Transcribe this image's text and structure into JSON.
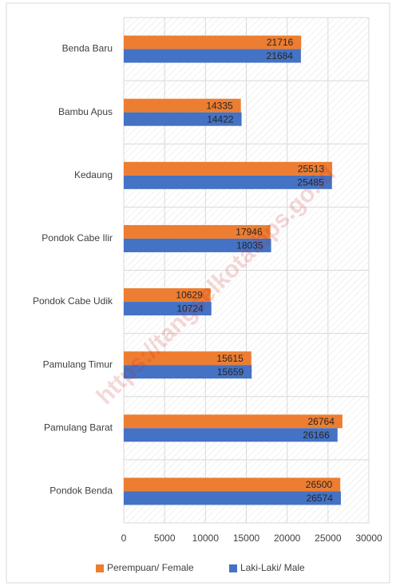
{
  "chart_data": {
    "type": "barh",
    "watermark": "https://tangselkota.bps.go.id",
    "categories": [
      "Benda Baru",
      "Bambu Apus",
      "Kedaung",
      "Pondok Cabe Ilir",
      "Pondok Cabe Udik",
      "Pamulang Timur",
      "Pamulang Barat",
      "Pondok Benda"
    ],
    "series": [
      {
        "name": "Perempuan/ Female",
        "color": "#ed7d31",
        "values": [
          21716,
          14335,
          25513,
          17946,
          10629,
          15615,
          26764,
          26500
        ]
      },
      {
        "name": "Laki-Laki/ Male",
        "color": "#4472c4",
        "values": [
          21684,
          14422,
          25485,
          18035,
          10724,
          15659,
          26166,
          26574
        ]
      }
    ],
    "xlim": [
      0,
      30000
    ],
    "xticks": [
      0,
      5000,
      10000,
      15000,
      20000,
      25000,
      30000
    ],
    "grid": true,
    "legend": "bottom"
  }
}
